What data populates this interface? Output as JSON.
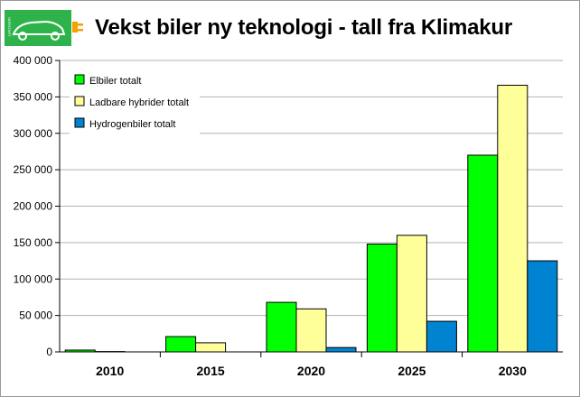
{
  "title": "Vekst biler ny teknologi - tall fra Klimakur",
  "logo": {
    "name": "car-plug-logo",
    "text": "NORSTART",
    "color": "#2db34a",
    "plug_color": "#f5a000"
  },
  "colors": {
    "background": "#ffffff",
    "plot_background": "#ffffff",
    "axis": "#000000",
    "grid": "#b3b3b3"
  },
  "chart_data": {
    "type": "bar",
    "title": "",
    "xlabel": "",
    "ylabel": "",
    "categories": [
      "2010",
      "2015",
      "2020",
      "2025",
      "2030"
    ],
    "ylim": [
      0,
      400000
    ],
    "yticks": [
      0,
      50000,
      100000,
      150000,
      200000,
      250000,
      300000,
      350000,
      400000
    ],
    "ytick_labels": [
      "0",
      "50 000",
      "100 000",
      "150 000",
      "200 000",
      "250 000",
      "300 000",
      "350 000",
      "400 000"
    ],
    "grid": true,
    "legend_position": "top-left",
    "series": [
      {
        "name": "Elbiler totalt",
        "color": "#00ff00",
        "values": [
          2500,
          21000,
          68000,
          148000,
          270000
        ]
      },
      {
        "name": "Ladbare hybrider totalt",
        "color": "#ffff99",
        "values": [
          500,
          12500,
          59000,
          160000,
          366000
        ]
      },
      {
        "name": "Hydrogenbiler totalt",
        "color": "#0084d1",
        "values": [
          0,
          0,
          6000,
          42000,
          125000
        ]
      }
    ]
  }
}
